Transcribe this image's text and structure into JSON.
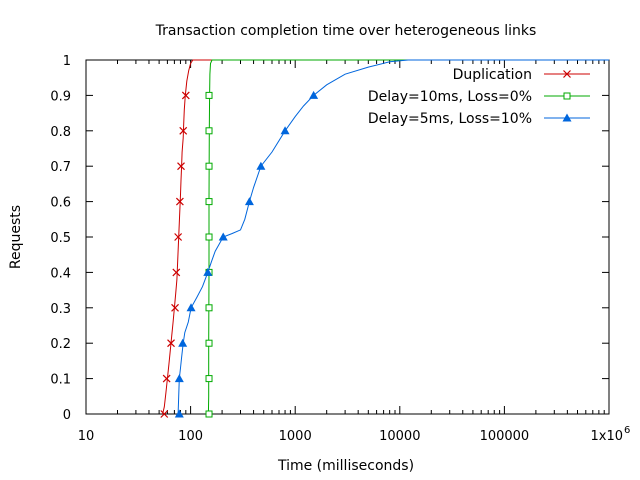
{
  "chart_data": {
    "type": "line",
    "title": "Transaction completion time over heterogeneous links",
    "xlabel": "Time (milliseconds)",
    "ylabel": "Requests",
    "xscale": "log",
    "xlim": [
      10,
      1000000
    ],
    "ylim": [
      0,
      1
    ],
    "grid": false,
    "legend_position": "top-right",
    "x_ticks": [
      {
        "value": 10,
        "label": "10"
      },
      {
        "value": 100,
        "label": "100"
      },
      {
        "value": 1000,
        "label": "1000"
      },
      {
        "value": 10000,
        "label": "10000"
      },
      {
        "value": 100000,
        "label": "100000"
      },
      {
        "value": 1000000,
        "label": "1x10^6",
        "base": "1x10",
        "exp": "6"
      }
    ],
    "y_ticks": [
      {
        "value": 0,
        "label": "0"
      },
      {
        "value": 0.1,
        "label": "0.1"
      },
      {
        "value": 0.2,
        "label": "0.2"
      },
      {
        "value": 0.3,
        "label": "0.3"
      },
      {
        "value": 0.4,
        "label": "0.4"
      },
      {
        "value": 0.5,
        "label": "0.5"
      },
      {
        "value": 0.6,
        "label": "0.6"
      },
      {
        "value": 0.7,
        "label": "0.7"
      },
      {
        "value": 0.8,
        "label": "0.8"
      },
      {
        "value": 0.9,
        "label": "0.9"
      },
      {
        "value": 1,
        "label": "1"
      }
    ],
    "series": [
      {
        "name": "Duplication",
        "color": "#cc0000",
        "marker": "x",
        "curve": [
          [
            54,
            0
          ],
          [
            56,
            0.02
          ],
          [
            58,
            0.06
          ],
          [
            60,
            0.1
          ],
          [
            62,
            0.14
          ],
          [
            64,
            0.18
          ],
          [
            66,
            0.22
          ],
          [
            68,
            0.26
          ],
          [
            70,
            0.3
          ],
          [
            72,
            0.34
          ],
          [
            74,
            0.38
          ],
          [
            75,
            0.42
          ],
          [
            76,
            0.46
          ],
          [
            77,
            0.5
          ],
          [
            78,
            0.54
          ],
          [
            79,
            0.58
          ],
          [
            80,
            0.62
          ],
          [
            81,
            0.66
          ],
          [
            82,
            0.7
          ],
          [
            83,
            0.74
          ],
          [
            85,
            0.78
          ],
          [
            86,
            0.82
          ],
          [
            87,
            0.86
          ],
          [
            89,
            0.9
          ],
          [
            92,
            0.94
          ],
          [
            96,
            0.97
          ],
          [
            100,
            0.99
          ],
          [
            105,
            1
          ]
        ],
        "markers": [
          [
            56,
            0
          ],
          [
            59,
            0.1
          ],
          [
            65,
            0.2
          ],
          [
            71,
            0.3
          ],
          [
            73,
            0.4
          ],
          [
            76,
            0.5
          ],
          [
            79,
            0.6
          ],
          [
            81,
            0.7
          ],
          [
            85,
            0.8
          ],
          [
            90,
            0.9
          ]
        ]
      },
      {
        "name": "Delay=10ms, Loss=0%",
        "color": "#00aa00",
        "marker": "square",
        "curve": [
          [
            148,
            0
          ],
          [
            149,
            0.05
          ],
          [
            149,
            0.2
          ],
          [
            150,
            0.4
          ],
          [
            150,
            0.6
          ],
          [
            151,
            0.8
          ],
          [
            152,
            0.9
          ],
          [
            153,
            0.96
          ],
          [
            155,
            0.99
          ],
          [
            160,
            1
          ]
        ],
        "markers": [
          [
            150,
            0
          ],
          [
            150,
            0.1
          ],
          [
            150,
            0.2
          ],
          [
            150,
            0.3
          ],
          [
            150,
            0.4
          ],
          [
            150,
            0.5
          ],
          [
            150,
            0.6
          ],
          [
            150,
            0.7
          ],
          [
            150,
            0.8
          ],
          [
            150,
            0.9
          ]
        ]
      },
      {
        "name": "Delay=5ms, Loss=10%",
        "color": "#0066dd",
        "marker": "triangle",
        "curve": [
          [
            76,
            0
          ],
          [
            77,
            0.05
          ],
          [
            78,
            0.1
          ],
          [
            80,
            0.13
          ],
          [
            82,
            0.16
          ],
          [
            85,
            0.2
          ],
          [
            88,
            0.23
          ],
          [
            95,
            0.26
          ],
          [
            101,
            0.3
          ],
          [
            115,
            0.33
          ],
          [
            130,
            0.36
          ],
          [
            146,
            0.4
          ],
          [
            158,
            0.43
          ],
          [
            172,
            0.46
          ],
          [
            205,
            0.5
          ],
          [
            250,
            0.51
          ],
          [
            300,
            0.52
          ],
          [
            330,
            0.55
          ],
          [
            365,
            0.6
          ],
          [
            400,
            0.64
          ],
          [
            470,
            0.7
          ],
          [
            600,
            0.74
          ],
          [
            800,
            0.8
          ],
          [
            1000,
            0.84
          ],
          [
            1200,
            0.87
          ],
          [
            1500,
            0.9
          ],
          [
            2000,
            0.93
          ],
          [
            3000,
            0.96
          ],
          [
            5000,
            0.98
          ],
          [
            8000,
            0.995
          ],
          [
            12000,
            1
          ]
        ],
        "markers": [
          [
            78,
            0
          ],
          [
            78,
            0.1
          ],
          [
            84,
            0.2
          ],
          [
            101,
            0.3
          ],
          [
            146,
            0.4
          ],
          [
            205,
            0.5
          ],
          [
            365,
            0.6
          ],
          [
            470,
            0.7
          ],
          [
            800,
            0.8
          ],
          [
            1500,
            0.9
          ]
        ]
      }
    ]
  }
}
